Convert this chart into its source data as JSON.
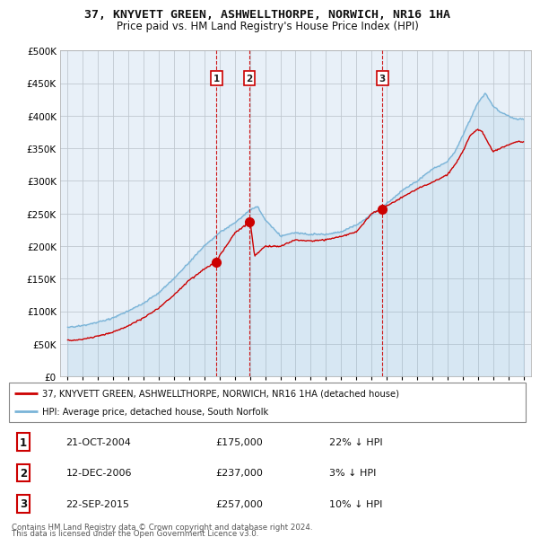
{
  "title": "37, KNYVETT GREEN, ASHWELLTHORPE, NORWICH, NR16 1HA",
  "subtitle": "Price paid vs. HM Land Registry's House Price Index (HPI)",
  "legend_line1": "37, KNYVETT GREEN, ASHWELLTHORPE, NORWICH, NR16 1HA (detached house)",
  "legend_line2": "HPI: Average price, detached house, South Norfolk",
  "footer1": "Contains HM Land Registry data © Crown copyright and database right 2024.",
  "footer2": "This data is licensed under the Open Government Licence v3.0.",
  "transactions": [
    {
      "num": 1,
      "date": "21-OCT-2004",
      "price": "£175,000",
      "hpi_diff": "22% ↓ HPI",
      "year": 2004.8,
      "price_val": 175000
    },
    {
      "num": 2,
      "date": "12-DEC-2006",
      "price": "£237,000",
      "hpi_diff": "3% ↓ HPI",
      "year": 2006.95,
      "price_val": 237000
    },
    {
      "num": 3,
      "date": "22-SEP-2015",
      "price": "£257,000",
      "hpi_diff": "10% ↓ HPI",
      "year": 2015.72,
      "price_val": 257000
    }
  ],
  "hpi_color": "#7ab4d8",
  "price_color": "#cc0000",
  "vline_color": "#cc0000",
  "chart_bg": "#e8f0f8",
  "bg_color": "#ffffff",
  "grid_color": "#c0c8d0",
  "ylim": [
    0,
    500000
  ],
  "yticks": [
    0,
    50000,
    100000,
    150000,
    200000,
    250000,
    300000,
    350000,
    400000,
    450000,
    500000
  ],
  "xmin": 1994.5,
  "xmax": 2025.5,
  "xticks": [
    1995,
    1996,
    1997,
    1998,
    1999,
    2000,
    2001,
    2002,
    2003,
    2004,
    2005,
    2006,
    2007,
    2008,
    2009,
    2010,
    2011,
    2012,
    2013,
    2014,
    2015,
    2016,
    2017,
    2018,
    2019,
    2020,
    2021,
    2022,
    2023,
    2024,
    2025
  ]
}
